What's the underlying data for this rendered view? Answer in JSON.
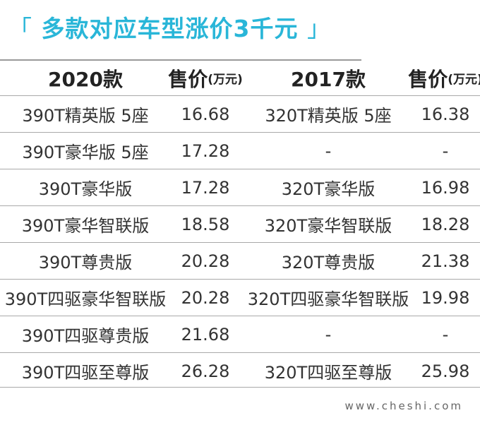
{
  "title": {
    "open_bracket": "「",
    "text": "多款对应车型涨价3千元",
    "close_bracket": "」"
  },
  "table": {
    "headers": {
      "col1": "2020款",
      "col2_label": "售价",
      "col2_unit": "(万元)",
      "col3": "2017款",
      "col4_label": "售价",
      "col4_unit": "(万元)"
    },
    "rows": [
      {
        "model_2020": "390T精英版 5座",
        "price_2020": "16.68",
        "model_2017": "320T精英版 5座",
        "price_2017": "16.38"
      },
      {
        "model_2020": "390T豪华版 5座",
        "price_2020": "17.28",
        "model_2017": "-",
        "price_2017": "-"
      },
      {
        "model_2020": "390T豪华版",
        "price_2020": "17.28",
        "model_2017": "320T豪华版",
        "price_2017": "16.98"
      },
      {
        "model_2020": "390T豪华智联版",
        "price_2020": "18.58",
        "model_2017": "320T豪华智联版",
        "price_2017": "18.28"
      },
      {
        "model_2020": "390T尊贵版",
        "price_2020": "20.28",
        "model_2017": "320T尊贵版",
        "price_2017": "21.38"
      },
      {
        "model_2020": "390T四驱豪华智联版",
        "price_2020": "20.28",
        "model_2017": "320T四驱豪华智联版",
        "price_2017": "19.98"
      },
      {
        "model_2020": "390T四驱尊贵版",
        "price_2020": "21.68",
        "model_2017": "-",
        "price_2017": "-"
      },
      {
        "model_2020": "390T四驱至尊版",
        "price_2020": "26.28",
        "model_2017": "320T四驱至尊版",
        "price_2017": "25.98"
      }
    ]
  },
  "watermark": "www.cheshi.com"
}
